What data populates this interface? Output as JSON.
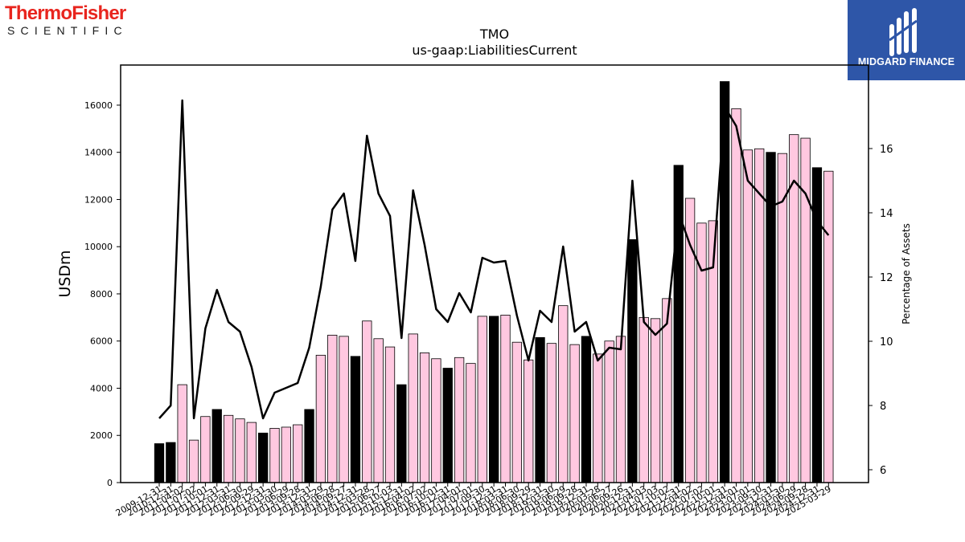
{
  "logos": {
    "left": {
      "brand": "ThermoFisher",
      "sub": "SCIENTIFIC",
      "brand_color": "#e8251e"
    },
    "right": {
      "name": "MIDGARD FINANCE",
      "background": "#2e56a8"
    }
  },
  "chart_data": {
    "type": "bar",
    "title": "TMO",
    "subtitle": "us-gaap:LiabilitiesCurrent",
    "ylabel": "USDm",
    "y2label": "Percentage of Assets",
    "ylim": [
      0,
      17700
    ],
    "y2lim": [
      5.6,
      18.6
    ],
    "yticks": [
      0,
      2000,
      4000,
      6000,
      8000,
      10000,
      12000,
      14000,
      16000
    ],
    "y2ticks": [
      6,
      8,
      10,
      12,
      14,
      16
    ],
    "colors": {
      "annual_bar": "#000000",
      "quarter_bar": "#ffc8e0",
      "line": "#000000"
    },
    "categories": [
      "2009-12-31",
      "2010-12-31",
      "2011-04-02",
      "2011-07-02",
      "2011-10-01",
      "2011-12-31",
      "2012-03-31",
      "2012-06-30",
      "2012-09-29",
      "2012-12-31",
      "2013-03-30",
      "2013-06-29",
      "2013-09-28",
      "2013-12-31",
      "2014-03-29",
      "2014-06-28",
      "2014-09-27",
      "2014-12-31",
      "2015-03-28",
      "2015-06-27",
      "2015-10-03",
      "2015-12-31",
      "2016-04-02",
      "2016-07-02",
      "2016-10-01",
      "2016-12-31",
      "2017-04-01",
      "2017-07-01",
      "2017-09-30",
      "2017-12-31",
      "2018-03-31",
      "2018-06-30",
      "2018-09-29",
      "2018-12-31",
      "2019-03-30",
      "2019-06-29",
      "2019-09-28",
      "2019-12-31",
      "2020-03-28",
      "2020-06-27",
      "2020-09-26",
      "2020-12-31",
      "2021-04-03",
      "2021-07-03",
      "2021-10-02",
      "2021-12-31",
      "2022-04-02",
      "2022-07-02",
      "2022-10-01",
      "2022-12-31",
      "2023-04-01",
      "2023-07-01",
      "2023-09-30",
      "2023-12-31",
      "2024-03-30",
      "2024-06-29",
      "2024-09-28",
      "2024-12-31",
      "2025-03-29"
    ],
    "tick_labels": [
      "2009-12-31",
      "2010-12-31",
      "2011-04-02",
      "2011-07-02",
      "2011-10-01",
      "2011-12-31",
      "2012-03-31",
      "2012-06-30",
      "2012-09-29",
      "2012-12-31",
      "2013-03-30",
      "2013-06-29",
      "2013-09-28",
      "2013-12-31",
      "2014-03-29",
      "2014-06-28",
      "2014-09-27",
      "2014-12-31",
      "2015-03-28",
      "2015-06-27",
      "2015-10-03",
      "2015-12-31",
      "2016-04-02",
      "2016-07-02",
      "2016-10-01",
      "2016-12-31",
      "2017-04-01",
      "2017-07-01",
      "2017-09-30",
      "2017-12-31",
      "2018-03-31",
      "2018-06-30",
      "2018-09-29",
      "2018-12-31",
      "2019-03-30",
      "2019-06-29",
      "2019-09-28",
      "2019-12-31",
      "2020-03-28",
      "2020-06-27",
      "2020-09-26",
      "2020-12-31",
      "2021-04-03",
      "2021-07-03",
      "2021-10-02",
      "2021-12-31",
      "2022-04-02",
      "2022-07-02",
      "2022-10-01",
      "2022-12-31",
      "2023-04-01",
      "2023-07-01",
      "2023-09-30",
      "2023-12-31",
      "2024-03-30",
      "2024-06-29",
      "2024-09-28",
      "2024-12-31",
      "2025-03-29"
    ],
    "annual": [
      true,
      true,
      false,
      false,
      false,
      true,
      false,
      false,
      false,
      true,
      false,
      false,
      false,
      true,
      false,
      false,
      false,
      true,
      false,
      false,
      false,
      true,
      false,
      false,
      false,
      true,
      false,
      false,
      false,
      true,
      false,
      false,
      false,
      true,
      false,
      false,
      false,
      true,
      false,
      false,
      false,
      true,
      false,
      false,
      false,
      true,
      false,
      false,
      false,
      true,
      false,
      false,
      false,
      true,
      false,
      false,
      false,
      true,
      false
    ],
    "series": [
      {
        "type": "bar",
        "axis": "left",
        "values": [
          1650,
          1700,
          4150,
          1800,
          2800,
          3100,
          2850,
          2700,
          2550,
          2100,
          2300,
          2350,
          2450,
          3100,
          5400,
          6250,
          6200,
          5350,
          6850,
          6100,
          5750,
          4150,
          6300,
          5500,
          5250,
          4850,
          5300,
          5050,
          7050,
          7050,
          7100,
          5950,
          5200,
          6150,
          5900,
          7500,
          5850,
          6200,
          5450,
          6000,
          6200,
          10300,
          7000,
          6950,
          7800,
          13450,
          12050,
          11000,
          11100,
          17000,
          15850,
          14100,
          14150,
          14000,
          13950,
          14750,
          14600,
          13350,
          13200
        ]
      },
      {
        "type": "line",
        "axis": "right",
        "values": [
          7.6,
          8.0,
          17.5,
          7.6,
          10.4,
          11.6,
          10.6,
          10.3,
          9.2,
          7.6,
          8.4,
          8.55,
          8.7,
          9.8,
          11.7,
          14.1,
          14.6,
          12.5,
          16.4,
          14.6,
          13.9,
          10.1,
          14.7,
          13.0,
          11.0,
          10.6,
          11.5,
          10.9,
          12.6,
          12.45,
          12.5,
          10.8,
          9.4,
          10.95,
          10.6,
          12.95,
          10.3,
          10.6,
          9.4,
          9.8,
          9.75,
          15.0,
          10.6,
          10.2,
          10.55,
          14.0,
          13.0,
          12.2,
          12.3,
          17.3,
          16.7,
          15.0,
          14.6,
          14.2,
          14.35,
          15.0,
          14.6,
          13.75,
          13.3
        ]
      }
    ]
  }
}
